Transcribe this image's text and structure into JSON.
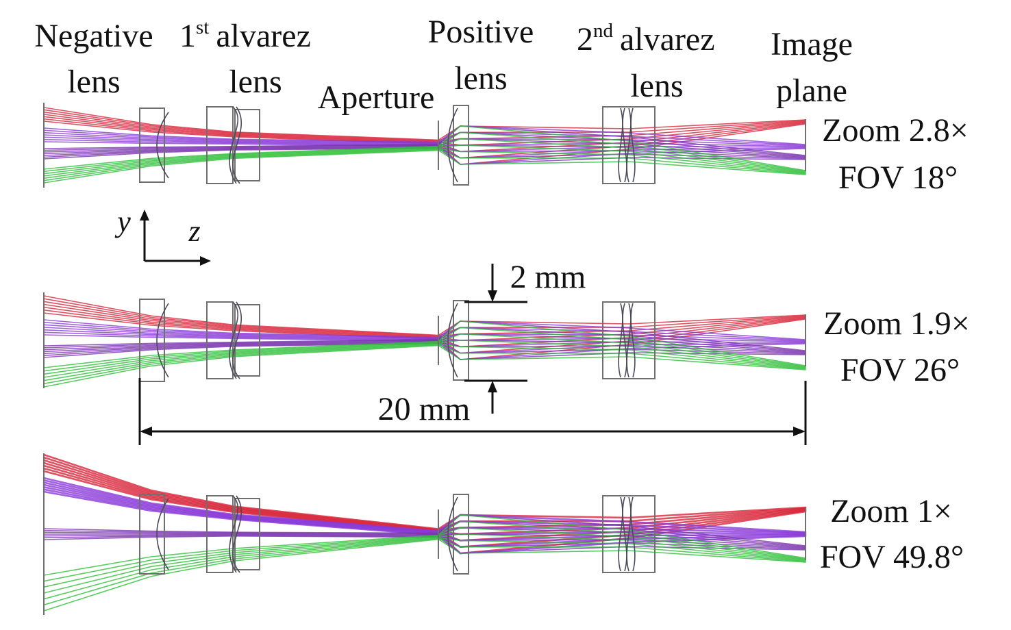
{
  "figure": {
    "labels": {
      "negative_lens": [
        "Negative",
        "lens"
      ],
      "alvarez_1": {
        "num": "1",
        "sup": "st",
        "word": "alvarez",
        "line2": "lens"
      },
      "aperture": "Aperture",
      "positive_lens": [
        "Positive",
        "lens"
      ],
      "alvarez_2": {
        "num": "2",
        "sup": "nd",
        "word": "alvarez",
        "line2": "lens"
      },
      "image_plane": [
        "Image",
        "plane"
      ]
    },
    "axes": {
      "y": "y",
      "z": "z"
    },
    "dimensions": {
      "aperture_height": "2 mm",
      "total_length": "20 mm"
    },
    "configurations": [
      {
        "zoom": "Zoom 2.8×",
        "fov": "FOV 18°"
      },
      {
        "zoom": "Zoom 1.9×",
        "fov": "FOV 26°"
      },
      {
        "zoom": "Zoom 1×",
        "fov": "FOV 49.8°"
      }
    ],
    "colors": {
      "field1": "#d8263a",
      "field2": "#8a3ad8",
      "field3": "#7a34b0",
      "field4": "#2fbf3a",
      "outline": "#6f6f6f"
    }
  }
}
